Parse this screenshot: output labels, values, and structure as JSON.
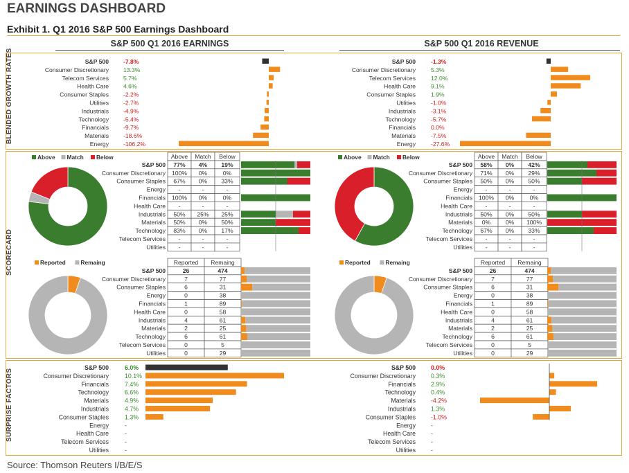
{
  "header": {
    "title": "EARNINGS DASHBOARD",
    "exhibit": "Exhibit 1.  Q1 2016 S&P 500 Earnings Dashboard",
    "source": "Source: Thomson Reuters I/B/E/S"
  },
  "panels": {
    "earnings_title": "S&P 500 Q1 2016 EARNINGS",
    "revenue_title": "S&P 500 Q1 2016 REVENUE"
  },
  "side_labels": {
    "growth": "BLENDED GROWTH RATES",
    "scorecard": "SCORECARD",
    "surprise": "SURPRISE FACTORS"
  },
  "colors": {
    "orange": "#f08c1e",
    "dark": "#333333",
    "green": "#3a7d2e",
    "red": "#d9202a",
    "gray": "#b5b5b5",
    "pos_text": "#3a8a2e",
    "neg_text": "#d02020"
  },
  "legends": {
    "above": "Above",
    "match": "Match",
    "below": "Below",
    "reported": "Reported",
    "remaining": "Remaing"
  },
  "table_headers": {
    "above": "Above",
    "match": "Match",
    "below": "Below",
    "reported": "Reported",
    "remaining": "Remaing"
  },
  "chart_data": [
    {
      "type": "bar",
      "id": "earnings_growth",
      "title": "S&P 500 Q1 2016 EARNINGS",
      "categories": [
        "S&P 500",
        "Consumer Discretionary",
        "Telecom Services",
        "Health Care",
        "Consumer Staples",
        "Utilities",
        "Industrials",
        "Technology",
        "Financials",
        "Materials",
        "Energy"
      ],
      "values": [
        -7.8,
        13.3,
        5.7,
        4.6,
        -2.2,
        -2.7,
        -4.9,
        -5.4,
        -9.7,
        -18.6,
        -106.2
      ],
      "labels": [
        "-7.8%",
        "13.3%",
        "5.7%",
        "4.6%",
        "-2.2%",
        "-2.7%",
        "-4.9%",
        "-5.4%",
        "-9.7%",
        "-18.6%",
        "-106.2%"
      ]
    },
    {
      "type": "bar",
      "id": "revenue_growth",
      "title": "S&P 500 Q1 2016 REVENUE",
      "categories": [
        "S&P 500",
        "Consumer Discretionary",
        "Telecom Services",
        "Health Care",
        "Consumer Staples",
        "Utilities",
        "Industrials",
        "Technology",
        "Financials",
        "Materials",
        "Energy"
      ],
      "values": [
        -1.3,
        5.3,
        12.0,
        9.1,
        1.9,
        -1.0,
        -3.1,
        -5.7,
        0.0,
        -7.5,
        -27.6
      ],
      "labels": [
        "-1.3%",
        "5.3%",
        "12.0%",
        "9.1%",
        "1.9%",
        "-1.0%",
        "-3.1%",
        "-5.7%",
        "0.0%",
        "-7.5%",
        "-27.6%"
      ]
    },
    {
      "type": "table",
      "id": "earnings_scorecard",
      "pie": {
        "above": 77,
        "match": 4,
        "below": 19
      },
      "rows": [
        {
          "name": "S&P 500",
          "above": "77%",
          "match": "4%",
          "below": "19%",
          "a": 77,
          "m": 4,
          "b": 19
        },
        {
          "name": "Consumer Discretionary",
          "above": "100%",
          "match": "0%",
          "below": "0%",
          "a": 100,
          "m": 0,
          "b": 0
        },
        {
          "name": "Consumer Staples",
          "above": "67%",
          "match": "0%",
          "below": "33%",
          "a": 67,
          "m": 0,
          "b": 33
        },
        {
          "name": "Energy",
          "above": "-",
          "match": "-",
          "below": "-",
          "a": 0,
          "m": 0,
          "b": 0
        },
        {
          "name": "Financials",
          "above": "100%",
          "match": "0%",
          "below": "0%",
          "a": 100,
          "m": 0,
          "b": 0
        },
        {
          "name": "Health Care",
          "above": "-",
          "match": "-",
          "below": "-",
          "a": 0,
          "m": 0,
          "b": 0
        },
        {
          "name": "Industrials",
          "above": "50%",
          "match": "25%",
          "below": "25%",
          "a": 50,
          "m": 25,
          "b": 25
        },
        {
          "name": "Materials",
          "above": "50%",
          "match": "0%",
          "below": "50%",
          "a": 50,
          "m": 0,
          "b": 50
        },
        {
          "name": "Technology",
          "above": "83%",
          "match": "0%",
          "below": "17%",
          "a": 83,
          "m": 0,
          "b": 17
        },
        {
          "name": "Telecom Services",
          "above": "-",
          "match": "-",
          "below": "-",
          "a": 0,
          "m": 0,
          "b": 0
        },
        {
          "name": "Utilities",
          "above": "-",
          "match": "-",
          "below": "-",
          "a": 0,
          "m": 0,
          "b": 0
        }
      ]
    },
    {
      "type": "table",
      "id": "revenue_scorecard",
      "pie": {
        "above": 58,
        "match": 0,
        "below": 42
      },
      "rows": [
        {
          "name": "S&P 500",
          "above": "58%",
          "match": "0%",
          "below": "42%",
          "a": 58,
          "m": 0,
          "b": 42
        },
        {
          "name": "Consumer Discretionary",
          "above": "71%",
          "match": "0%",
          "below": "29%",
          "a": 71,
          "m": 0,
          "b": 29
        },
        {
          "name": "Consumer Staples",
          "above": "50%",
          "match": "0%",
          "below": "50%",
          "a": 50,
          "m": 0,
          "b": 50
        },
        {
          "name": "Energy",
          "above": "-",
          "match": "-",
          "below": "-",
          "a": 0,
          "m": 0,
          "b": 0
        },
        {
          "name": "Financials",
          "above": "100%",
          "match": "0%",
          "below": "0%",
          "a": 100,
          "m": 0,
          "b": 0
        },
        {
          "name": "Health Care",
          "above": "-",
          "match": "-",
          "below": "-",
          "a": 0,
          "m": 0,
          "b": 0
        },
        {
          "name": "Industrials",
          "above": "50%",
          "match": "0%",
          "below": "50%",
          "a": 50,
          "m": 0,
          "b": 50
        },
        {
          "name": "Materials",
          "above": "0%",
          "match": "0%",
          "below": "100%",
          "a": 0,
          "m": 0,
          "b": 100
        },
        {
          "name": "Technology",
          "above": "67%",
          "match": "0%",
          "below": "33%",
          "a": 67,
          "m": 0,
          "b": 33
        },
        {
          "name": "Telecom Services",
          "above": "-",
          "match": "-",
          "below": "-",
          "a": 0,
          "m": 0,
          "b": 0
        },
        {
          "name": "Utilities",
          "above": "-",
          "match": "-",
          "below": "-",
          "a": 0,
          "m": 0,
          "b": 0
        }
      ]
    },
    {
      "type": "table",
      "id": "earnings_reported",
      "pie": {
        "reported": 26,
        "remaining": 474
      },
      "rows": [
        {
          "name": "S&P 500",
          "reported": 26,
          "remaining": 474
        },
        {
          "name": "Consumer Discretionary",
          "reported": 7,
          "remaining": 77
        },
        {
          "name": "Consumer Staples",
          "reported": 6,
          "remaining": 31
        },
        {
          "name": "Energy",
          "reported": 0,
          "remaining": 38
        },
        {
          "name": "Financials",
          "reported": 1,
          "remaining": 89
        },
        {
          "name": "Health Care",
          "reported": 0,
          "remaining": 58
        },
        {
          "name": "Industrials",
          "reported": 4,
          "remaining": 61
        },
        {
          "name": "Materials",
          "reported": 2,
          "remaining": 25
        },
        {
          "name": "Technology",
          "reported": 6,
          "remaining": 61
        },
        {
          "name": "Telecom Services",
          "reported": 0,
          "remaining": 5
        },
        {
          "name": "Utilities",
          "reported": 0,
          "remaining": 29
        }
      ]
    },
    {
      "type": "table",
      "id": "revenue_reported",
      "pie": {
        "reported": 26,
        "remaining": 474
      },
      "rows": [
        {
          "name": "S&P 500",
          "reported": 26,
          "remaining": 474
        },
        {
          "name": "Consumer Discretionary",
          "reported": 7,
          "remaining": 77
        },
        {
          "name": "Consumer Staples",
          "reported": 6,
          "remaining": 31
        },
        {
          "name": "Energy",
          "reported": 0,
          "remaining": 38
        },
        {
          "name": "Financials",
          "reported": 1,
          "remaining": 89
        },
        {
          "name": "Health Care",
          "reported": 0,
          "remaining": 58
        },
        {
          "name": "Industrials",
          "reported": 4,
          "remaining": 61
        },
        {
          "name": "Materials",
          "reported": 2,
          "remaining": 25
        },
        {
          "name": "Technology",
          "reported": 6,
          "remaining": 61
        },
        {
          "name": "Telecom Services",
          "reported": 0,
          "remaining": 5
        },
        {
          "name": "Utilities",
          "reported": 0,
          "remaining": 29
        }
      ]
    },
    {
      "type": "bar",
      "id": "earnings_surprise",
      "categories": [
        "S&P 500",
        "Consumer Discretionary",
        "Financials",
        "Technology",
        "Materials",
        "Industrials",
        "Consumer Staples",
        "Energy",
        "Health Care",
        "Telecom Services",
        "Utilities"
      ],
      "values": [
        6.0,
        10.1,
        7.4,
        6.6,
        4.9,
        4.7,
        1.3,
        null,
        null,
        null,
        null
      ],
      "labels": [
        "6.0%",
        "10.1%",
        "7.4%",
        "6.6%",
        "4.9%",
        "4.7%",
        "1.3%",
        "-",
        "-",
        "-",
        "-"
      ]
    },
    {
      "type": "bar",
      "id": "revenue_surprise",
      "categories": [
        "S&P 500",
        "Consumer Discretionary",
        "Financials",
        "Technology",
        "Materials",
        "Industrials",
        "Consumer Staples",
        "Energy",
        "Health Care",
        "Telecom Services",
        "Utilities"
      ],
      "values": [
        0.0,
        0.3,
        2.9,
        0.4,
        -4.2,
        1.3,
        -1.0,
        null,
        null,
        null,
        null
      ],
      "labels": [
        "0.0%",
        "0.3%",
        "2.9%",
        "0.4%",
        "-4.2%",
        "1.3%",
        "-1.0%",
        "-",
        "-",
        "-",
        "-"
      ]
    }
  ]
}
